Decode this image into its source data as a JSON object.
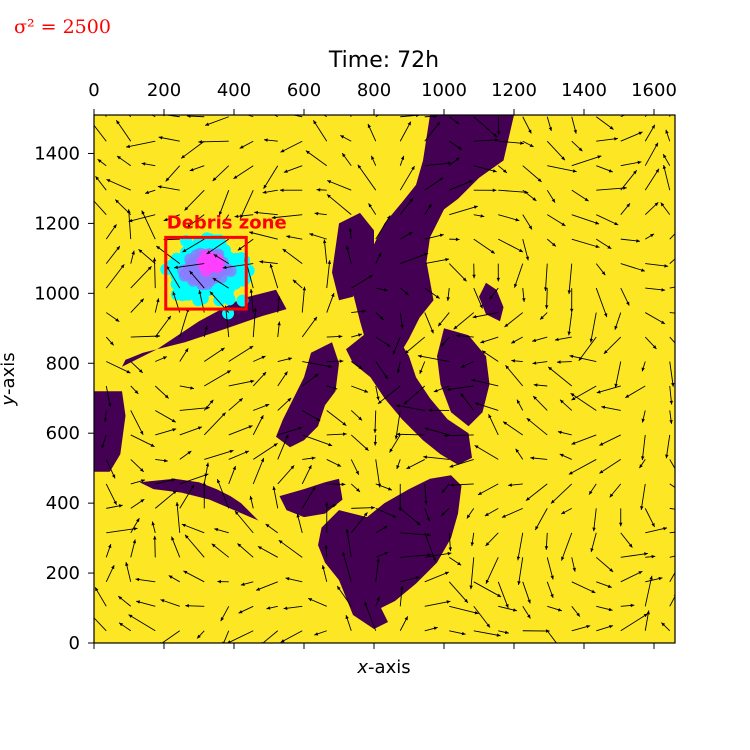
{
  "chart_data": {
    "type": "heatmap",
    "annotation_top_left": "σ² = 2500",
    "title": "Time: 72h",
    "xlabel": "x-axis",
    "ylabel": "y-axis",
    "xlim": [
      0,
      1660
    ],
    "ylim": [
      0,
      1510
    ],
    "x_ticks": [
      0,
      200,
      400,
      600,
      800,
      1000,
      1200,
      1400,
      1600
    ],
    "y_ticks": [
      0,
      200,
      400,
      600,
      800,
      1000,
      1200,
      1400
    ],
    "x_tick_labels_position": "top",
    "colors": {
      "sea": "#fde725",
      "land": "#440154",
      "zone_box": "#ff0000",
      "particles_outer": "#00ffff",
      "particles_inner": "#8a7dff",
      "particles_core": "#ff40ff"
    },
    "debris_zone": {
      "label": "Debris zone",
      "x": [
        205,
        435
      ],
      "y": [
        955,
        1160
      ]
    },
    "particles": {
      "center": [
        320,
        1070
      ],
      "spread": 2500
    },
    "land_regions": [
      {
        "name": "west-coast",
        "points": [
          [
            0,
            720
          ],
          [
            80,
            720
          ],
          [
            90,
            650
          ],
          [
            75,
            540
          ],
          [
            45,
            490
          ],
          [
            0,
            490
          ]
        ]
      },
      {
        "name": "west-peninsula",
        "points": [
          [
            80,
            790
          ],
          [
            180,
            840
          ],
          [
            300,
            920
          ],
          [
            420,
            985
          ],
          [
            520,
            1010
          ],
          [
            550,
            955
          ],
          [
            480,
            935
          ],
          [
            380,
            900
          ],
          [
            260,
            860
          ],
          [
            140,
            830
          ],
          [
            90,
            810
          ]
        ]
      },
      {
        "name": "south-island-west",
        "points": [
          [
            130,
            460
          ],
          [
            230,
            470
          ],
          [
            300,
            460
          ],
          [
            350,
            440
          ],
          [
            390,
            420
          ],
          [
            420,
            400
          ],
          [
            470,
            350
          ],
          [
            400,
            380
          ],
          [
            330,
            410
          ],
          [
            250,
            430
          ],
          [
            170,
            440
          ]
        ]
      },
      {
        "name": "main-north",
        "points": [
          [
            960,
            1510
          ],
          [
            1200,
            1510
          ],
          [
            1170,
            1380
          ],
          [
            1100,
            1330
          ],
          [
            1040,
            1270
          ],
          [
            1000,
            1240
          ],
          [
            960,
            1160
          ],
          [
            950,
            1090
          ],
          [
            970,
            980
          ],
          [
            930,
            930
          ],
          [
            900,
            870
          ],
          [
            870,
            820
          ],
          [
            850,
            800
          ],
          [
            800,
            780
          ],
          [
            780,
            850
          ],
          [
            760,
            920
          ],
          [
            740,
            1000
          ],
          [
            760,
            1060
          ],
          [
            800,
            1140
          ],
          [
            830,
            1200
          ],
          [
            880,
            1260
          ],
          [
            920,
            1310
          ],
          [
            940,
            1380
          ]
        ]
      },
      {
        "name": "main-mid",
        "points": [
          [
            720,
            840
          ],
          [
            770,
            880
          ],
          [
            820,
            900
          ],
          [
            870,
            870
          ],
          [
            900,
            820
          ],
          [
            920,
            760
          ],
          [
            960,
            700
          ],
          [
            1010,
            640
          ],
          [
            1070,
            600
          ],
          [
            1080,
            530
          ],
          [
            1040,
            510
          ],
          [
            990,
            540
          ],
          [
            940,
            580
          ],
          [
            880,
            640
          ],
          [
            830,
            700
          ],
          [
            790,
            760
          ],
          [
            740,
            800
          ]
        ]
      },
      {
        "name": "upper-center",
        "points": [
          [
            700,
            1200
          ],
          [
            760,
            1230
          ],
          [
            800,
            1180
          ],
          [
            800,
            1100
          ],
          [
            760,
            1050
          ],
          [
            740,
            990
          ],
          [
            700,
            980
          ],
          [
            680,
            1060
          ]
        ]
      },
      {
        "name": "center-lobe",
        "points": [
          [
            620,
            830
          ],
          [
            680,
            860
          ],
          [
            700,
            800
          ],
          [
            690,
            720
          ],
          [
            660,
            680
          ],
          [
            640,
            620
          ],
          [
            600,
            580
          ],
          [
            560,
            560
          ],
          [
            520,
            590
          ],
          [
            540,
            640
          ],
          [
            570,
            700
          ],
          [
            600,
            760
          ]
        ]
      },
      {
        "name": "east-strip",
        "points": [
          [
            1000,
            900
          ],
          [
            1070,
            880
          ],
          [
            1120,
            820
          ],
          [
            1130,
            740
          ],
          [
            1110,
            660
          ],
          [
            1070,
            620
          ],
          [
            1020,
            660
          ],
          [
            990,
            740
          ],
          [
            980,
            820
          ]
        ]
      },
      {
        "name": "right-spur",
        "points": [
          [
            1120,
            1030
          ],
          [
            1150,
            1010
          ],
          [
            1170,
            960
          ],
          [
            1160,
            920
          ],
          [
            1120,
            940
          ],
          [
            1100,
            990
          ]
        ]
      },
      {
        "name": "southern-large",
        "points": [
          [
            700,
            380
          ],
          [
            780,
            360
          ],
          [
            830,
            400
          ],
          [
            900,
            440
          ],
          [
            960,
            470
          ],
          [
            1020,
            480
          ],
          [
            1050,
            450
          ],
          [
            1040,
            370
          ],
          [
            1020,
            300
          ],
          [
            980,
            230
          ],
          [
            920,
            170
          ],
          [
            860,
            120
          ],
          [
            800,
            90
          ],
          [
            740,
            80
          ],
          [
            720,
            130
          ],
          [
            700,
            180
          ],
          [
            660,
            230
          ],
          [
            640,
            280
          ],
          [
            650,
            330
          ]
        ]
      },
      {
        "name": "south-west-link",
        "points": [
          [
            530,
            420
          ],
          [
            600,
            440
          ],
          [
            660,
            460
          ],
          [
            700,
            470
          ],
          [
            710,
            410
          ],
          [
            660,
            370
          ],
          [
            600,
            360
          ],
          [
            550,
            380
          ]
        ]
      },
      {
        "name": "south-tail",
        "points": [
          [
            740,
            80
          ],
          [
            800,
            40
          ],
          [
            840,
            60
          ],
          [
            820,
            100
          ],
          [
            780,
            110
          ]
        ]
      }
    ],
    "flow_field_grid_spacing": 70
  }
}
